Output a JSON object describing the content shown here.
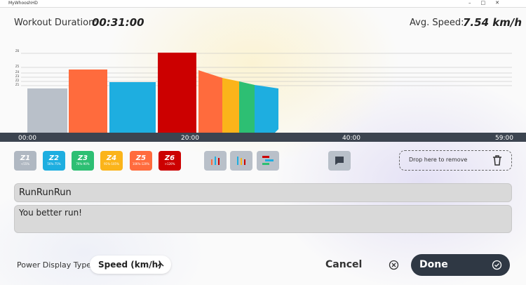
{
  "window": {
    "title": "MyWhooshHD"
  },
  "header": {
    "duration_label": "Workout Duration:",
    "duration": "00:31:00",
    "speed_label": "Avg. Speed:",
    "speed": "7.54 km/h"
  },
  "chart": {
    "zone_labels": [
      "Z6",
      "Z5",
      "Z4",
      "Z3",
      "Z2",
      "Z1"
    ],
    "timeline": [
      "00:00",
      "20:00",
      "40:00",
      "59:00"
    ]
  },
  "zones": [
    {
      "label": "Z1",
      "range": "<55%"
    },
    {
      "label": "Z2",
      "range": "56%-75%"
    },
    {
      "label": "Z3",
      "range": "76%-90%"
    },
    {
      "label": "Z4",
      "range": "91%-105%"
    },
    {
      "label": "Z5",
      "range": "106%-120%"
    },
    {
      "label": "Z6",
      "range": ">120%"
    }
  ],
  "drop_zone": "Drop here to remove",
  "workout": {
    "name": "RunRunRun",
    "description": "You better run!"
  },
  "footer": {
    "power_display_label": "Power Display Type",
    "power_display_value": "Speed (km/h)",
    "cancel": "Cancel",
    "done": "Done"
  }
}
